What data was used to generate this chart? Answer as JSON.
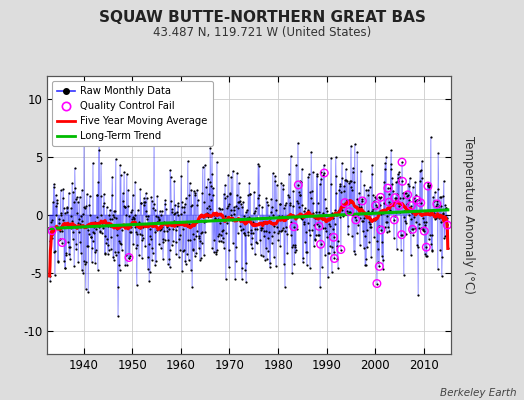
{
  "title": "SQUAW BUTTE-NORTHERN GREAT BAS",
  "subtitle": "43.487 N, 119.721 W (United States)",
  "ylabel": "Temperature Anomaly (°C)",
  "credit": "Berkeley Earth",
  "year_start": 1933,
  "year_end": 2014,
  "ylim": [
    -12,
    12
  ],
  "yticks": [
    -10,
    -5,
    0,
    5,
    10
  ],
  "bg_color": "#dddddd",
  "plot_bg_color": "#ffffff",
  "line_color": "#3333ff",
  "marker_color": "#000000",
  "qc_color": "#ff00ff",
  "moving_avg_color": "#ff0000",
  "trend_color": "#00bb00",
  "xticks": [
    1940,
    1950,
    1960,
    1970,
    1980,
    1990,
    2000,
    2010
  ],
  "legend_labels": [
    "Raw Monthly Data",
    "Quality Control Fail",
    "Five Year Moving Average",
    "Long-Term Trend"
  ]
}
